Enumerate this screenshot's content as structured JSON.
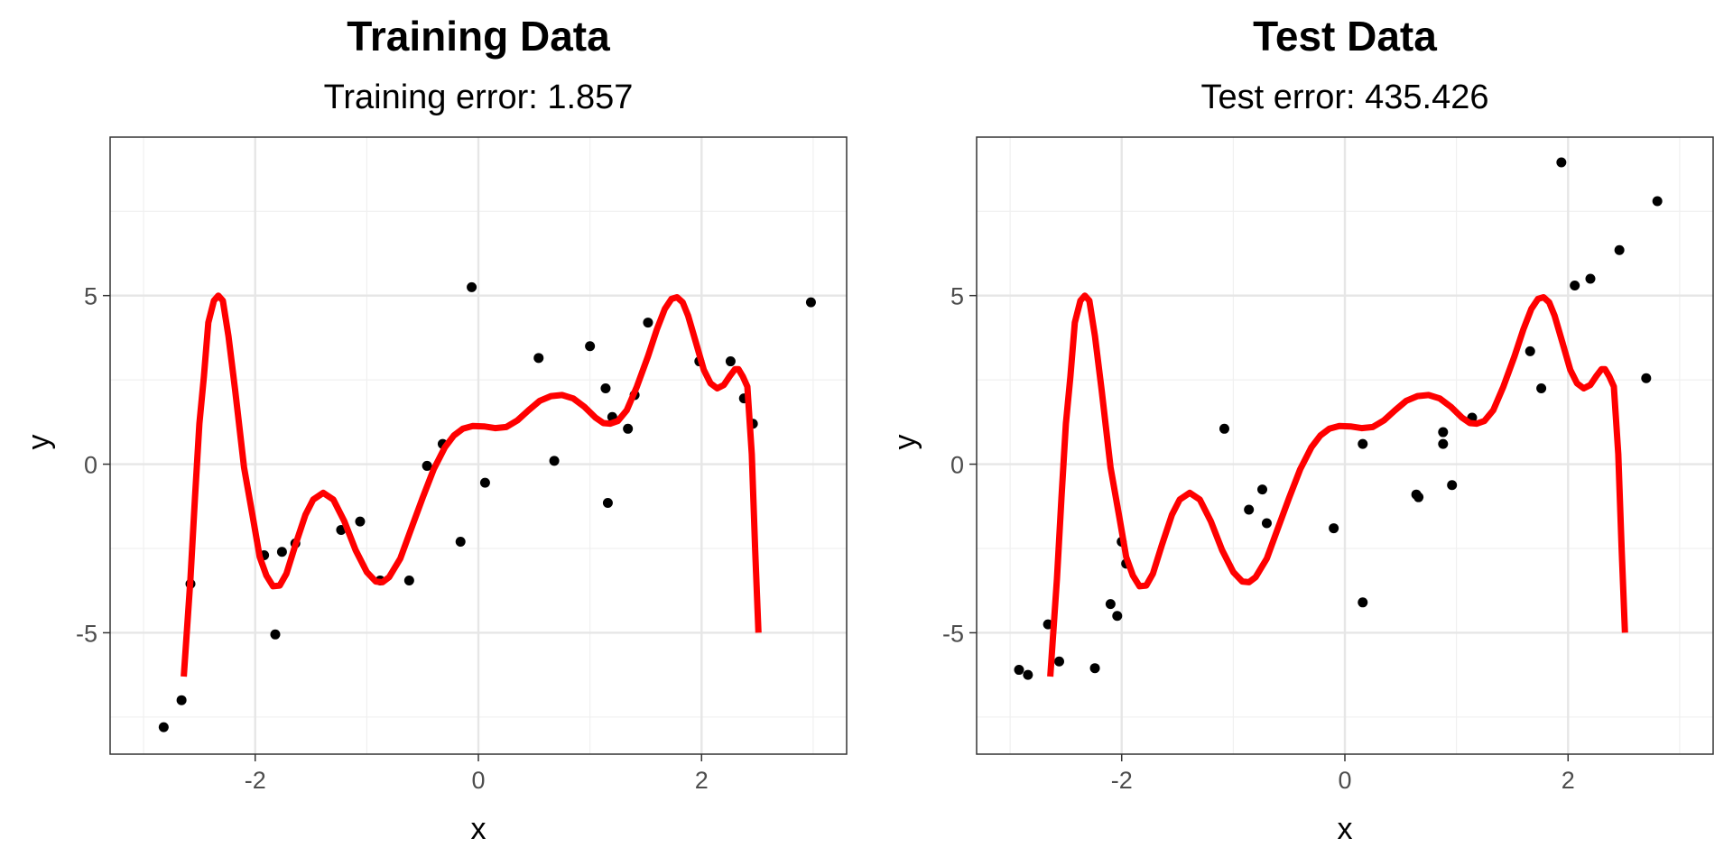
{
  "chart_data": [
    {
      "type": "scatter",
      "title": "Training Data",
      "subtitle": "Training error: 1.857",
      "xlabel": "x",
      "ylabel": "y",
      "xlim": [
        -3.3,
        3.3
      ],
      "ylim": [
        -8.6,
        9.7
      ],
      "x_ticks": [
        -2,
        0,
        2
      ],
      "y_ticks": [
        -5,
        0,
        5
      ],
      "grid": true,
      "points": [
        [
          -2.82,
          -7.8
        ],
        [
          -2.66,
          -7.0
        ],
        [
          -2.58,
          -3.55
        ],
        [
          -1.92,
          -2.7
        ],
        [
          -1.82,
          -5.05
        ],
        [
          -1.76,
          -2.6
        ],
        [
          -1.64,
          -2.35
        ],
        [
          -1.23,
          -1.95
        ],
        [
          -1.06,
          -1.7
        ],
        [
          -0.88,
          -3.45
        ],
        [
          -0.62,
          -3.45
        ],
        [
          -0.46,
          -0.05
        ],
        [
          -0.32,
          0.6
        ],
        [
          -0.16,
          -2.3
        ],
        [
          -0.06,
          5.25
        ],
        [
          0.06,
          -0.55
        ],
        [
          0.54,
          3.15
        ],
        [
          0.68,
          0.1
        ],
        [
          1.0,
          3.5
        ],
        [
          1.14,
          2.25
        ],
        [
          1.16,
          -1.15
        ],
        [
          1.2,
          1.4
        ],
        [
          1.34,
          1.05
        ],
        [
          1.4,
          2.05
        ],
        [
          1.52,
          4.2
        ],
        [
          1.98,
          3.05
        ],
        [
          2.26,
          3.05
        ],
        [
          2.38,
          1.95
        ],
        [
          2.46,
          1.2
        ],
        [
          2.98,
          4.8
        ]
      ],
      "series": [
        {
          "points": [
            [
              -2.64,
              -6.3
            ],
            [
              -2.58,
              -3.4
            ],
            [
              -2.54,
              -1.0
            ],
            [
              -2.5,
              1.2
            ],
            [
              -2.46,
              2.6
            ],
            [
              -2.42,
              4.2
            ],
            [
              -2.37,
              4.85
            ],
            [
              -2.33,
              5.0
            ],
            [
              -2.29,
              4.85
            ],
            [
              -2.24,
              3.8
            ],
            [
              -2.18,
              2.2
            ],
            [
              -2.1,
              -0.1
            ],
            [
              -2.02,
              -1.6
            ],
            [
              -1.96,
              -2.75
            ],
            [
              -1.9,
              -3.3
            ],
            [
              -1.84,
              -3.62
            ],
            [
              -1.78,
              -3.6
            ],
            [
              -1.72,
              -3.25
            ],
            [
              -1.64,
              -2.4
            ],
            [
              -1.55,
              -1.5
            ],
            [
              -1.48,
              -1.05
            ],
            [
              -1.39,
              -0.85
            ],
            [
              -1.3,
              -1.05
            ],
            [
              -1.2,
              -1.7
            ],
            [
              -1.1,
              -2.55
            ],
            [
              -1.0,
              -3.2
            ],
            [
              -0.92,
              -3.48
            ],
            [
              -0.86,
              -3.5
            ],
            [
              -0.8,
              -3.35
            ],
            [
              -0.7,
              -2.8
            ],
            [
              -0.6,
              -1.9
            ],
            [
              -0.5,
              -1.0
            ],
            [
              -0.4,
              -0.15
            ],
            [
              -0.3,
              0.5
            ],
            [
              -0.22,
              0.85
            ],
            [
              -0.14,
              1.05
            ],
            [
              -0.05,
              1.13
            ],
            [
              0.05,
              1.12
            ],
            [
              0.15,
              1.07
            ],
            [
              0.25,
              1.1
            ],
            [
              0.35,
              1.3
            ],
            [
              0.45,
              1.6
            ],
            [
              0.55,
              1.88
            ],
            [
              0.65,
              2.02
            ],
            [
              0.75,
              2.05
            ],
            [
              0.85,
              1.95
            ],
            [
              0.95,
              1.7
            ],
            [
              1.05,
              1.38
            ],
            [
              1.12,
              1.22
            ],
            [
              1.18,
              1.2
            ],
            [
              1.25,
              1.28
            ],
            [
              1.33,
              1.6
            ],
            [
              1.42,
              2.3
            ],
            [
              1.52,
              3.2
            ],
            [
              1.6,
              4.0
            ],
            [
              1.67,
              4.6
            ],
            [
              1.73,
              4.9
            ],
            [
              1.78,
              4.95
            ],
            [
              1.83,
              4.8
            ],
            [
              1.88,
              4.4
            ],
            [
              1.95,
              3.6
            ],
            [
              2.02,
              2.8
            ],
            [
              2.08,
              2.4
            ],
            [
              2.14,
              2.25
            ],
            [
              2.2,
              2.35
            ],
            [
              2.25,
              2.6
            ],
            [
              2.3,
              2.82
            ],
            [
              2.33,
              2.82
            ],
            [
              2.37,
              2.6
            ],
            [
              2.41,
              2.3
            ],
            [
              2.45,
              0.3
            ],
            [
              2.48,
              -2.5
            ],
            [
              2.51,
              -5.0
            ]
          ]
        }
      ]
    },
    {
      "type": "scatter",
      "title": "Test Data",
      "subtitle": "Test error: 435.426",
      "xlabel": "x",
      "ylabel": "y",
      "xlim": [
        -3.3,
        3.3
      ],
      "ylim": [
        -8.6,
        9.7
      ],
      "x_ticks": [
        -2,
        0,
        2
      ],
      "y_ticks": [
        -5,
        0,
        5
      ],
      "grid": true,
      "points": [
        [
          -2.92,
          -6.1
        ],
        [
          -2.84,
          -6.25
        ],
        [
          -2.66,
          -4.75
        ],
        [
          -2.56,
          -5.85
        ],
        [
          -2.24,
          -6.05
        ],
        [
          -2.1,
          -4.15
        ],
        [
          -2.04,
          -4.5
        ],
        [
          -2.0,
          -2.3
        ],
        [
          -1.96,
          -2.95
        ],
        [
          -1.08,
          1.05
        ],
        [
          -0.86,
          -1.35
        ],
        [
          -0.74,
          -0.75
        ],
        [
          -0.7,
          -1.75
        ],
        [
          -0.1,
          -1.9
        ],
        [
          0.16,
          0.6
        ],
        [
          0.16,
          -4.1
        ],
        [
          0.64,
          -0.9
        ],
        [
          0.66,
          -0.98
        ],
        [
          0.88,
          0.95
        ],
        [
          0.88,
          0.6
        ],
        [
          0.96,
          -0.62
        ],
        [
          1.14,
          1.38
        ],
        [
          1.66,
          3.35
        ],
        [
          1.76,
          2.25
        ],
        [
          1.94,
          8.95
        ],
        [
          2.06,
          5.3
        ],
        [
          2.2,
          5.5
        ],
        [
          2.46,
          6.35
        ],
        [
          2.7,
          2.55
        ],
        [
          2.8,
          7.8
        ]
      ],
      "series": [
        {
          "points": [
            [
              -2.64,
              -6.3
            ],
            [
              -2.58,
              -3.4
            ],
            [
              -2.54,
              -1.0
            ],
            [
              -2.5,
              1.2
            ],
            [
              -2.46,
              2.6
            ],
            [
              -2.42,
              4.2
            ],
            [
              -2.37,
              4.85
            ],
            [
              -2.33,
              5.0
            ],
            [
              -2.29,
              4.85
            ],
            [
              -2.24,
              3.8
            ],
            [
              -2.18,
              2.2
            ],
            [
              -2.1,
              -0.1
            ],
            [
              -2.02,
              -1.6
            ],
            [
              -1.96,
              -2.75
            ],
            [
              -1.9,
              -3.3
            ],
            [
              -1.84,
              -3.62
            ],
            [
              -1.78,
              -3.6
            ],
            [
              -1.72,
              -3.25
            ],
            [
              -1.64,
              -2.4
            ],
            [
              -1.55,
              -1.5
            ],
            [
              -1.48,
              -1.05
            ],
            [
              -1.39,
              -0.85
            ],
            [
              -1.3,
              -1.05
            ],
            [
              -1.2,
              -1.7
            ],
            [
              -1.1,
              -2.55
            ],
            [
              -1.0,
              -3.2
            ],
            [
              -0.92,
              -3.48
            ],
            [
              -0.86,
              -3.5
            ],
            [
              -0.8,
              -3.35
            ],
            [
              -0.7,
              -2.8
            ],
            [
              -0.6,
              -1.9
            ],
            [
              -0.5,
              -1.0
            ],
            [
              -0.4,
              -0.15
            ],
            [
              -0.3,
              0.5
            ],
            [
              -0.22,
              0.85
            ],
            [
              -0.14,
              1.05
            ],
            [
              -0.05,
              1.13
            ],
            [
              0.05,
              1.12
            ],
            [
              0.15,
              1.07
            ],
            [
              0.25,
              1.1
            ],
            [
              0.35,
              1.3
            ],
            [
              0.45,
              1.6
            ],
            [
              0.55,
              1.88
            ],
            [
              0.65,
              2.02
            ],
            [
              0.75,
              2.05
            ],
            [
              0.85,
              1.95
            ],
            [
              0.95,
              1.7
            ],
            [
              1.05,
              1.38
            ],
            [
              1.12,
              1.22
            ],
            [
              1.18,
              1.2
            ],
            [
              1.25,
              1.28
            ],
            [
              1.33,
              1.6
            ],
            [
              1.42,
              2.3
            ],
            [
              1.52,
              3.2
            ],
            [
              1.6,
              4.0
            ],
            [
              1.67,
              4.6
            ],
            [
              1.73,
              4.9
            ],
            [
              1.78,
              4.95
            ],
            [
              1.83,
              4.8
            ],
            [
              1.88,
              4.4
            ],
            [
              1.95,
              3.6
            ],
            [
              2.02,
              2.8
            ],
            [
              2.08,
              2.4
            ],
            [
              2.14,
              2.25
            ],
            [
              2.2,
              2.35
            ],
            [
              2.25,
              2.6
            ],
            [
              2.3,
              2.82
            ],
            [
              2.33,
              2.82
            ],
            [
              2.37,
              2.6
            ],
            [
              2.41,
              2.3
            ],
            [
              2.45,
              0.3
            ],
            [
              2.48,
              -2.5
            ],
            [
              2.51,
              -5.0
            ]
          ]
        }
      ]
    }
  ],
  "colors": {
    "fit_line": "#ff0000",
    "points": "#000000",
    "grid": "#e6e6e6",
    "panel_border": "#333333"
  }
}
